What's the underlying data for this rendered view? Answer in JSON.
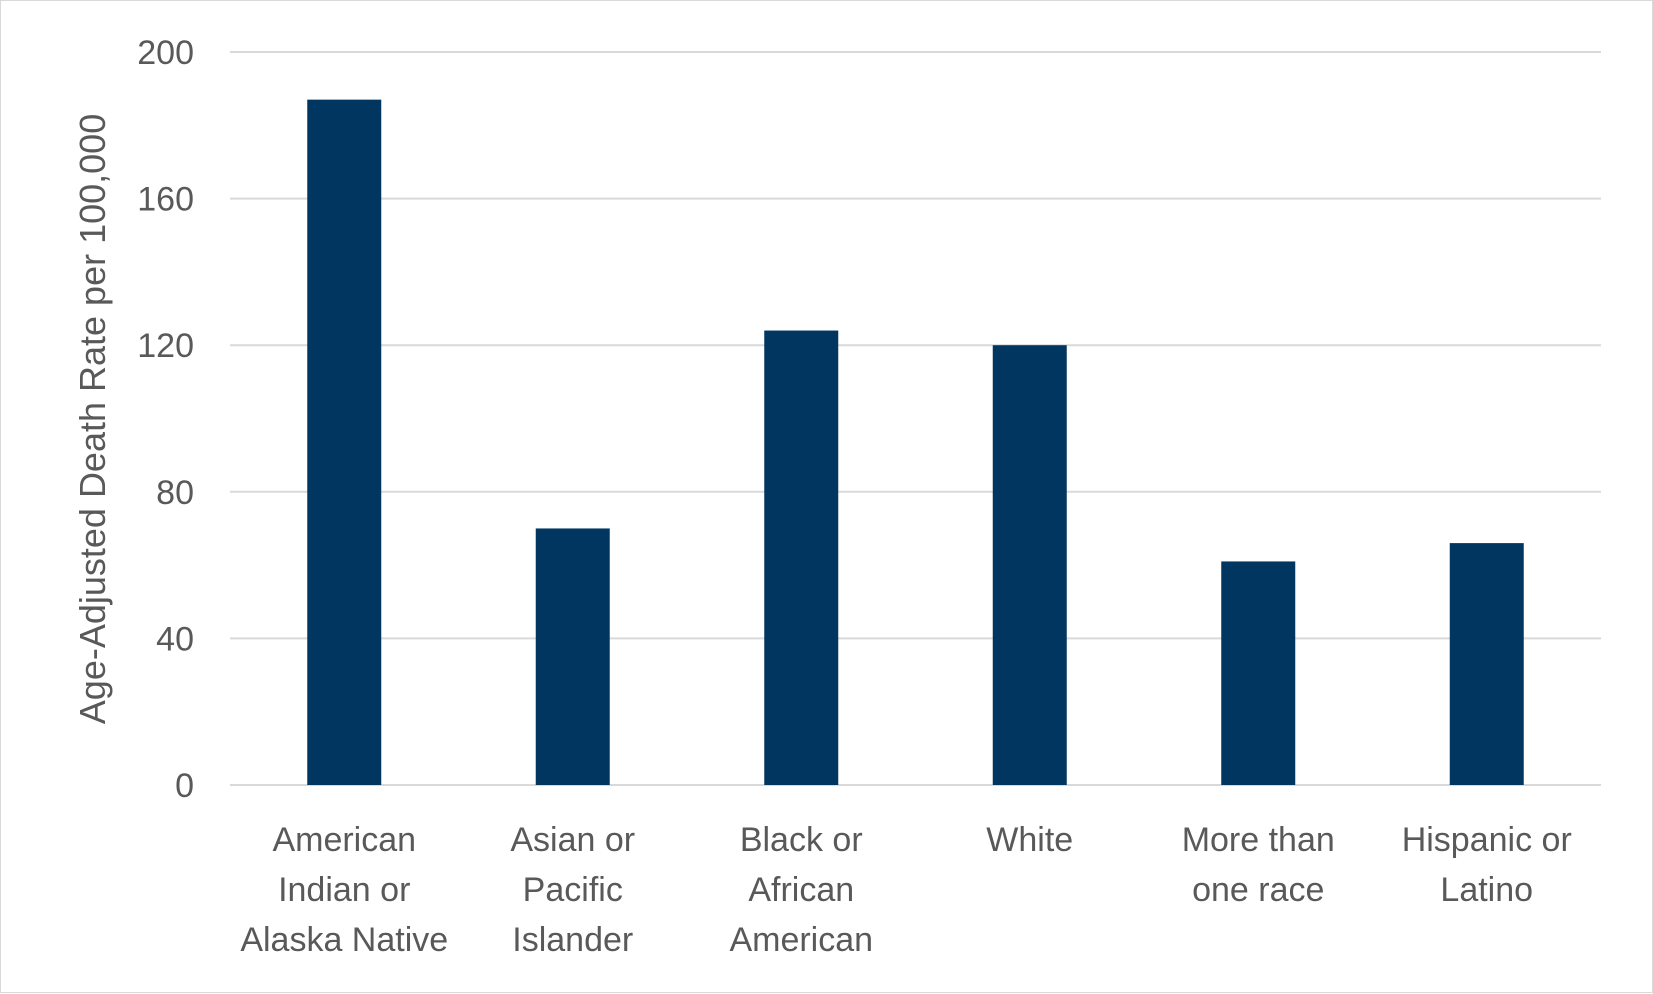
{
  "chart_data": {
    "type": "bar",
    "title": "",
    "xlabel": "",
    "ylabel": "Age-Adjusted Death Rate per 100,000",
    "ylim": [
      0,
      200
    ],
    "yticks": [
      0,
      40,
      80,
      120,
      160,
      200
    ],
    "grid": true,
    "legend": "none",
    "bar_color": "#003660",
    "categories": [
      [
        "American",
        "Indian or",
        "Alaska Native"
      ],
      [
        "Asian or",
        "Pacific",
        "Islander"
      ],
      [
        "Black or",
        "African",
        "American"
      ],
      [
        "White"
      ],
      [
        "More than",
        "one race"
      ],
      [
        "Hispanic or",
        "Latino"
      ]
    ],
    "values": [
      187,
      70,
      124,
      120,
      61,
      66
    ]
  }
}
